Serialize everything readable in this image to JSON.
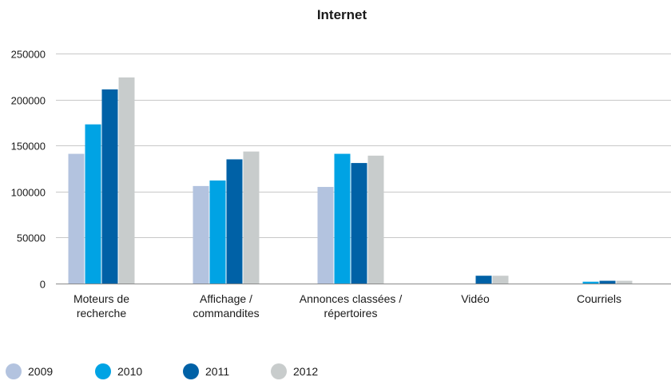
{
  "chart_data": {
    "type": "bar",
    "title": "Internet",
    "xlabel": "",
    "ylabel": "",
    "ylim": [
      0,
      250000
    ],
    "yticks": [
      0,
      50000,
      100000,
      150000,
      200000,
      250000
    ],
    "ytick_labels": [
      "0",
      "50000",
      "100000",
      "150000",
      "200000",
      "250000"
    ],
    "grid": true,
    "legend_position": "bottom-left",
    "categories": [
      [
        "Moteurs de",
        "recherche"
      ],
      [
        "Affichage /",
        "commandites"
      ],
      [
        "Annonces classées /",
        "répertoires"
      ],
      [
        "Vidéo"
      ],
      [
        "Courriels"
      ]
    ],
    "series": [
      {
        "name": "2009",
        "color": "#b3c3df",
        "values": [
          141000,
          106000,
          105000,
          0,
          0
        ]
      },
      {
        "name": "2010",
        "color": "#00a3e4",
        "values": [
          173000,
          112000,
          141000,
          0,
          2000
        ]
      },
      {
        "name": "2011",
        "color": "#0061a6",
        "values": [
          211000,
          135000,
          131000,
          8500,
          3000
        ]
      },
      {
        "name": "2012",
        "color": "#c8cccc",
        "values": [
          224000,
          143500,
          139000,
          8500,
          3000
        ]
      }
    ]
  }
}
